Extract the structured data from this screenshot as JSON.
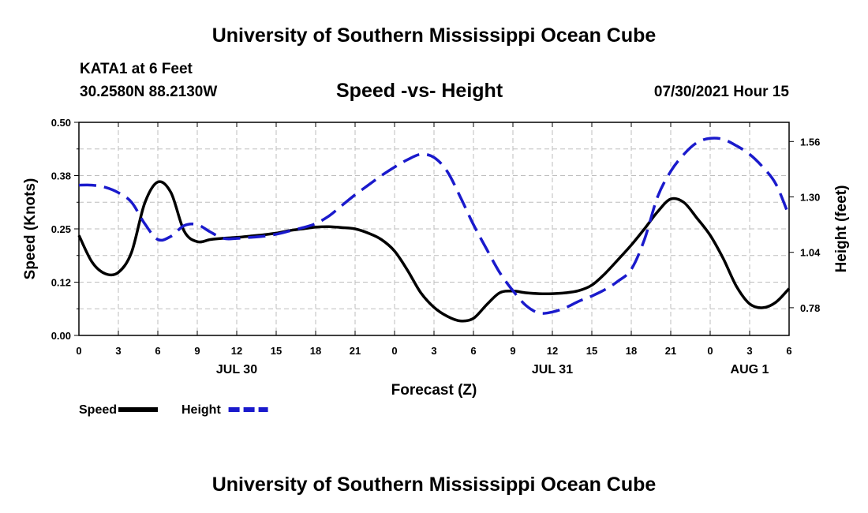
{
  "title_top": "University of Southern Mississippi Ocean Cube",
  "title_bottom": "University of Southern Mississippi Ocean Cube",
  "station": "KATA1 at 6 Feet",
  "coordinates": "30.2580N  88.2130W",
  "subtitle": "Speed -vs- Height",
  "datetime": "07/30/2021 Hour 15",
  "colors": {
    "speed": "#000000",
    "height": "#1a1acc",
    "grid": "#bdbdbd"
  },
  "chart_data": {
    "type": "line",
    "title": "Speed -vs- Height",
    "xlabel": "Forecast (Z)",
    "ylabel": "Speed (Knots)",
    "y2label": "Height (feet)",
    "xlim": [
      0,
      54
    ],
    "ylim": [
      0,
      0.5
    ],
    "y2lim": [
      0.65,
      1.65
    ],
    "grid": true,
    "x_ticks": [
      0,
      3,
      6,
      9,
      12,
      15,
      18,
      21,
      24,
      27,
      30,
      33,
      36,
      39,
      42,
      45,
      48,
      51,
      54
    ],
    "x_tick_labels": [
      "0",
      "3",
      "6",
      "9",
      "12",
      "15",
      "18",
      "21",
      "0",
      "3",
      "6",
      "9",
      "12",
      "15",
      "18",
      "21",
      "0",
      "3",
      "6"
    ],
    "y_ticks": [
      0,
      0.125,
      0.25,
      0.375,
      0.5
    ],
    "y_tick_labels": [
      "0.00",
      "0.12",
      "0.25",
      "0.38",
      "0.50"
    ],
    "y2_ticks": [
      0.78,
      1.04,
      1.3,
      1.56
    ],
    "y2_tick_labels": [
      "0.78",
      "1.04",
      "1.30",
      "1.56"
    ],
    "date_labels": [
      {
        "x": 12,
        "label": "JUL 30"
      },
      {
        "x": 36,
        "label": "JUL 31"
      },
      {
        "x": 51,
        "label": "AUG 1"
      }
    ],
    "series": [
      {
        "name": "Speed",
        "axis": "left",
        "style": "solid",
        "x": [
          0,
          1,
          2,
          3,
          4,
          5,
          6,
          7,
          8,
          9,
          10,
          11,
          12,
          13,
          14,
          15,
          16,
          17,
          18,
          19,
          20,
          21,
          22,
          23,
          24,
          25,
          26,
          27,
          28,
          29,
          30,
          31,
          32,
          33,
          34,
          35,
          36,
          37,
          38,
          39,
          40,
          41,
          42,
          43,
          44,
          45,
          46,
          47,
          48,
          49,
          50,
          51,
          52,
          53,
          54
        ],
        "values": [
          0.235,
          0.172,
          0.145,
          0.148,
          0.195,
          0.31,
          0.36,
          0.335,
          0.245,
          0.22,
          0.225,
          0.228,
          0.23,
          0.233,
          0.236,
          0.24,
          0.246,
          0.25,
          0.254,
          0.255,
          0.253,
          0.25,
          0.24,
          0.225,
          0.198,
          0.152,
          0.1,
          0.066,
          0.045,
          0.034,
          0.04,
          0.072,
          0.1,
          0.104,
          0.1,
          0.098,
          0.098,
          0.1,
          0.105,
          0.118,
          0.145,
          0.178,
          0.212,
          0.25,
          0.29,
          0.32,
          0.312,
          0.275,
          0.235,
          0.18,
          0.115,
          0.074,
          0.065,
          0.078,
          0.11
        ]
      },
      {
        "name": "Height",
        "axis": "right",
        "style": "dashed",
        "x": [
          0,
          1,
          2,
          3,
          4,
          5,
          6,
          7,
          8,
          9,
          10,
          11,
          12,
          13,
          14,
          15,
          16,
          17,
          18,
          19,
          20,
          21,
          22,
          23,
          24,
          25,
          26,
          27,
          28,
          29,
          30,
          31,
          32,
          33,
          34,
          35,
          36,
          37,
          38,
          39,
          40,
          41,
          42,
          43,
          44,
          45,
          46,
          47,
          48,
          49,
          50,
          51,
          52,
          53,
          54
        ],
        "values": [
          1.355,
          1.355,
          1.345,
          1.32,
          1.275,
          1.175,
          1.1,
          1.115,
          1.165,
          1.17,
          1.135,
          1.105,
          1.105,
          1.11,
          1.115,
          1.125,
          1.14,
          1.155,
          1.175,
          1.21,
          1.26,
          1.31,
          1.355,
          1.4,
          1.44,
          1.475,
          1.5,
          1.485,
          1.42,
          1.3,
          1.17,
          1.055,
          0.945,
          0.86,
          0.79,
          0.755,
          0.76,
          0.78,
          0.81,
          0.835,
          0.865,
          0.905,
          0.96,
          1.1,
          1.3,
          1.42,
          1.5,
          1.555,
          1.575,
          1.57,
          1.54,
          1.5,
          1.44,
          1.36,
          1.21
        ]
      }
    ],
    "legend": [
      {
        "label": "Speed",
        "style": "solid"
      },
      {
        "label": "Height",
        "style": "dashed"
      }
    ],
    "legend_position": "bottom-left"
  }
}
